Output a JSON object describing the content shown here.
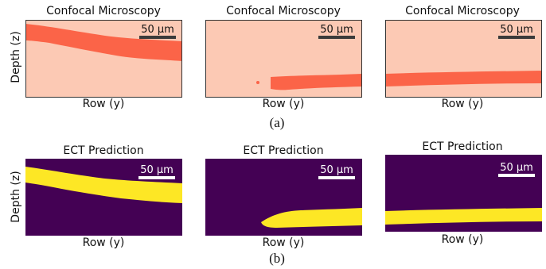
{
  "row_a": {
    "caption": "(a)",
    "panels": [
      {
        "title": "Confocal Microscopy",
        "xlabel": "Row (y)",
        "ylabel": "Depth (z)",
        "scalebar": "50 µm"
      },
      {
        "title": "Confocal Microscopy",
        "xlabel": "Row (y)",
        "ylabel": "",
        "scalebar": "50 µm"
      },
      {
        "title": "Confocal Microscopy",
        "xlabel": "Row (y)",
        "ylabel": "",
        "scalebar": "50 µm"
      }
    ]
  },
  "row_b": {
    "caption": "(b)",
    "panels": [
      {
        "title": "ECT Prediction",
        "xlabel": "Row (y)",
        "ylabel": "Depth (z)",
        "scalebar": "50 µm"
      },
      {
        "title": "ECT Prediction",
        "xlabel": "Row (y)",
        "ylabel": "",
        "scalebar": "50 µm"
      },
      {
        "title": "ECT Prediction",
        "xlabel": "Row (y)",
        "ylabel": "",
        "scalebar": "50 µm"
      }
    ]
  },
  "colors": {
    "confocal_background": "#fcc9b4",
    "confocal_foreground": "#fb6448",
    "confocal_scalebar": "#3b3b3b",
    "ect_background": "#440154",
    "ect_foreground": "#fde725",
    "ect_scalebar": "#ffffff"
  }
}
